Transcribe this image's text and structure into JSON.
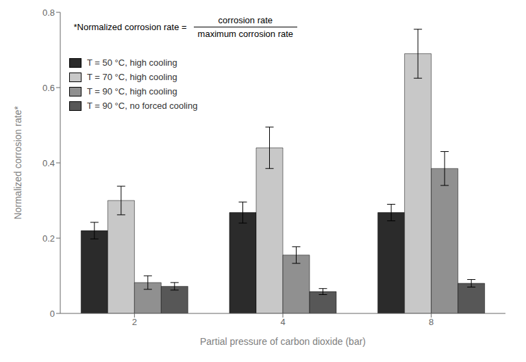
{
  "chart_data": {
    "type": "bar",
    "categories": [
      "2",
      "4",
      "8"
    ],
    "series": [
      {
        "name": "T = 50 °C, high cooling",
        "color": "#2b2b2b",
        "values": [
          0.22,
          0.268,
          0.268
        ],
        "errors": [
          0.022,
          0.028,
          0.022
        ]
      },
      {
        "name": "T = 70 °C, high cooling",
        "color": "#c8c8c8",
        "values": [
          0.3,
          0.44,
          0.69
        ],
        "errors": [
          0.038,
          0.055,
          0.065
        ]
      },
      {
        "name": "T = 90 °C, high cooling",
        "color": "#909090",
        "values": [
          0.082,
          0.155,
          0.385
        ],
        "errors": [
          0.018,
          0.022,
          0.045
        ]
      },
      {
        "name": "T = 90 °C, no forced cooling",
        "color": "#575757",
        "values": [
          0.072,
          0.058,
          0.08
        ],
        "errors": [
          0.01,
          0.008,
          0.01
        ]
      }
    ],
    "ylim": [
      0,
      0.8
    ],
    "yticks": [
      0,
      0.2,
      0.4,
      0.6,
      0.8
    ],
    "xlabel": "Partial pressure of carbon dioxide (bar)",
    "ylabel": "Normalized corrosion rate*",
    "annotation": {
      "left": "*Normalized corrosion rate =",
      "numerator": "corrosion rate",
      "denominator": "maximum corrosion rate"
    },
    "legend": "upper left",
    "grid": false
  }
}
